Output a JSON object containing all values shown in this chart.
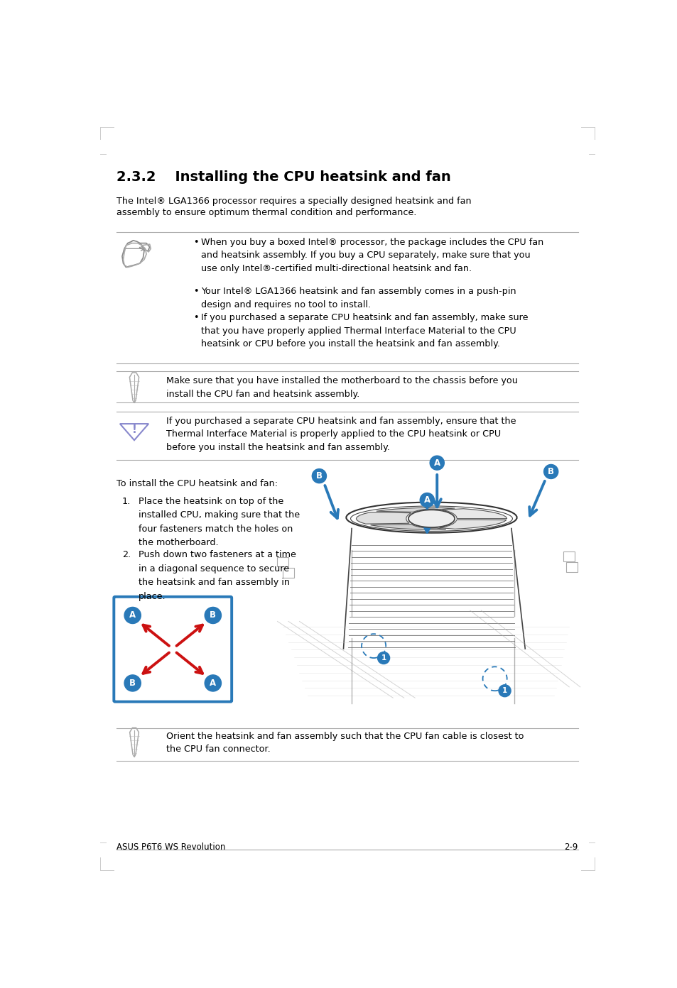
{
  "title": "2.3.2    Installing the CPU heatsink and fan",
  "intro_line1": "The Intel® LGA1366 processor requires a specially designed heatsink and fan",
  "intro_line2": "assembly to ensure optimum thermal condition and performance.",
  "bullet1": "When you buy a boxed Intel® processor, the package includes the CPU fan\nand heatsink assembly. If you buy a CPU separately, make sure that you\nuse only Intel®-certified multi-directional heatsink and fan.",
  "bullet2": "Your Intel® LGA1366 heatsink and fan assembly comes in a push-pin\ndesign and requires no tool to install.",
  "bullet3": "If you purchased a separate CPU heatsink and fan assembly, make sure\nthat you have properly applied Thermal Interface Material to the CPU\nheatsink or CPU before you install the heatsink and fan assembly.",
  "note2": "Make sure that you have installed the motherboard to the chassis before you\ninstall the CPU fan and heatsink assembly.",
  "warning": "If you purchased a separate CPU heatsink and fan assembly, ensure that the\nThermal Interface Material is properly applied to the CPU heatsink or CPU\nbefore you install the heatsink and fan assembly.",
  "install_intro": "To install the CPU heatsink and fan:",
  "step1": "Place the heatsink on top of the\ninstalled CPU, making sure that the\nfour fasteners match the holes on\nthe motherboard.",
  "step2": "Push down two fasteners at a time\nin a diagonal sequence to secure\nthe heatsink and fan assembly in\nplace.",
  "note3": "Orient the heatsink and fan assembly such that the CPU fan cable is closest to\nthe CPU fan connector.",
  "footer_left": "ASUS P6T6 WS Revolution",
  "footer_right": "2-9",
  "bg": "#ffffff",
  "fg": "#000000",
  "blue": "#2979b8",
  "red": "#cc1111",
  "gray": "#aaaaaa",
  "lightgray": "#cccccc"
}
